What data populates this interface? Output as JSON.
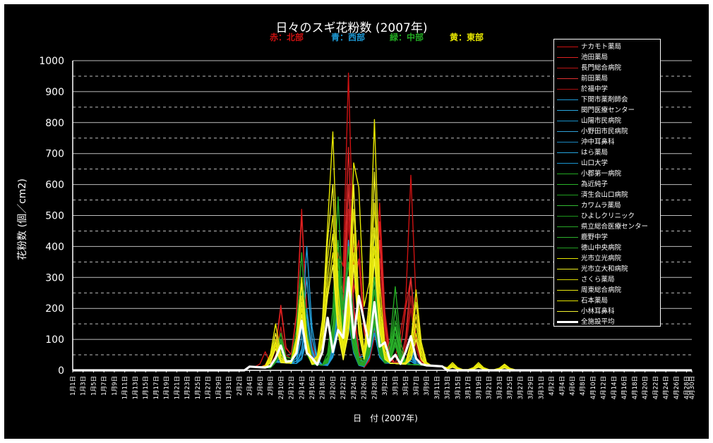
{
  "chart_data": {
    "type": "line",
    "title": "日々のスギ花粉数 (2007年)",
    "subtitle_groups": [
      {
        "label": "赤：北部",
        "color": "#cc1111"
      },
      {
        "label": "青：西部",
        "color": "#1e9bd7"
      },
      {
        "label": "緑：中部",
        "color": "#22aa22"
      },
      {
        "label": "黄：東部",
        "color": "#e8e800"
      }
    ],
    "xlabel": "日　付 (2007年)",
    "ylabel": "花粉数 (個／cm2)",
    "ylim": [
      0,
      1000
    ],
    "yticks": [
      0,
      100,
      200,
      300,
      400,
      500,
      600,
      700,
      800,
      900,
      1000
    ],
    "grid": "solid at every 100, dashed at every 50 offset",
    "legend_position": "top-right",
    "x_labels_every_other_day": [
      "1月1日",
      "1月3日",
      "1月5日",
      "1月7日",
      "1月9日",
      "1月11日",
      "1月13日",
      "1月15日",
      "1月17日",
      "1月19日",
      "1月21日",
      "1月23日",
      "1月25日",
      "1月27日",
      "1月29日",
      "1月31日",
      "2月2日",
      "2月4日",
      "2月6日",
      "2月8日",
      "2月10日",
      "2月12日",
      "2月14日",
      "2月16日",
      "2月18日",
      "2月20日",
      "2月22日",
      "2月24日",
      "2月26日",
      "2月28日",
      "3月2日",
      "3月3日",
      "3月5日",
      "3月7日",
      "3月9日",
      "3月11日",
      "3月13日",
      "3月15日",
      "3月17日",
      "3月19日",
      "3月21日",
      "3月23日",
      "3月25日",
      "3月27日",
      "3月29日",
      "3月31日",
      "4月2日",
      "4月4日",
      "4月6日",
      "4月8日",
      "4月10日",
      "4月12日",
      "4月14日",
      "4月16日",
      "4月18日",
      "4月20日",
      "4月22日",
      "4月24日",
      "4月26日",
      "4月28日",
      "4月30日"
    ],
    "series": [
      {
        "name": "ナカモト薬局",
        "color": "#cc1111",
        "region": "北部",
        "peaks": [
          [
            37,
            60
          ],
          [
            40,
            200
          ],
          [
            44,
            520
          ],
          [
            46,
            80
          ],
          [
            51,
            380
          ],
          [
            53,
            960
          ],
          [
            55,
            420
          ],
          [
            59,
            540
          ],
          [
            63,
            120
          ],
          [
            65,
            630
          ]
        ]
      },
      {
        "name": "池田薬局",
        "color": "#dd2222",
        "region": "北部",
        "peaks": [
          [
            38,
            50
          ],
          [
            40,
            210
          ],
          [
            44,
            500
          ],
          [
            51,
            300
          ],
          [
            53,
            720
          ],
          [
            55,
            360
          ],
          [
            59,
            480
          ],
          [
            64,
            200
          ],
          [
            65,
            300
          ]
        ]
      },
      {
        "name": "長門総合病院",
        "color": "#bb1515",
        "region": "北部",
        "peaks": [
          [
            40,
            140
          ],
          [
            44,
            380
          ],
          [
            51,
            260
          ],
          [
            53,
            520
          ],
          [
            59,
            360
          ],
          [
            65,
            240
          ]
        ]
      },
      {
        "name": "前田薬局",
        "color": "#e03030",
        "region": "北部",
        "peaks": [
          [
            40,
            100
          ],
          [
            44,
            300
          ],
          [
            51,
            300
          ],
          [
            53,
            600
          ],
          [
            59,
            420
          ],
          [
            65,
            300
          ]
        ]
      },
      {
        "name": "於福中学",
        "color": "#aa1010",
        "region": "北部",
        "peaks": [
          [
            40,
            80
          ],
          [
            44,
            260
          ],
          [
            51,
            220
          ],
          [
            53,
            480
          ],
          [
            59,
            300
          ],
          [
            65,
            200
          ]
        ]
      },
      {
        "name": "下関市薬剤師会",
        "color": "#1e9bd7",
        "region": "西部",
        "peaks": [
          [
            40,
            60
          ],
          [
            45,
            400
          ],
          [
            51,
            240
          ],
          [
            53,
            420
          ],
          [
            58,
            460
          ],
          [
            65,
            80
          ]
        ]
      },
      {
        "name": "関門医療センター",
        "color": "#2aa8e0",
        "region": "西部",
        "peaks": [
          [
            40,
            40
          ],
          [
            45,
            300
          ],
          [
            51,
            200
          ],
          [
            53,
            300
          ],
          [
            58,
            300
          ],
          [
            65,
            60
          ]
        ]
      },
      {
        "name": "山陽市民病院",
        "color": "#1890c8",
        "region": "西部",
        "peaks": [
          [
            40,
            50
          ],
          [
            45,
            200
          ],
          [
            51,
            180
          ],
          [
            53,
            260
          ],
          [
            58,
            220
          ],
          [
            65,
            50
          ]
        ]
      },
      {
        "name": "小野田市民病院",
        "color": "#2fa0d8",
        "region": "西部",
        "peaks": [
          [
            40,
            30
          ],
          [
            45,
            180
          ],
          [
            51,
            220
          ],
          [
            53,
            240
          ],
          [
            58,
            200
          ],
          [
            65,
            40
          ]
        ]
      },
      {
        "name": "沖中耳鼻科",
        "color": "#1c88c0",
        "region": "西部",
        "peaks": [
          [
            40,
            40
          ],
          [
            45,
            160
          ],
          [
            51,
            150
          ],
          [
            53,
            200
          ],
          [
            58,
            160
          ],
          [
            65,
            40
          ]
        ]
      },
      {
        "name": "はら薬局",
        "color": "#25a5dd",
        "region": "西部",
        "peaks": [
          [
            40,
            30
          ],
          [
            45,
            120
          ],
          [
            51,
            140
          ],
          [
            53,
            180
          ],
          [
            58,
            140
          ],
          [
            65,
            30
          ]
        ]
      },
      {
        "name": "山口大学",
        "color": "#1a95d0",
        "region": "西部",
        "peaks": [
          [
            40,
            20
          ],
          [
            45,
            100
          ],
          [
            51,
            120
          ],
          [
            53,
            160
          ],
          [
            58,
            120
          ],
          [
            65,
            30
          ]
        ]
      },
      {
        "name": "小郡第一病院",
        "color": "#22aa22",
        "region": "中部",
        "peaks": [
          [
            40,
            120
          ],
          [
            44,
            380
          ],
          [
            51,
            560
          ],
          [
            53,
            400
          ],
          [
            58,
            360
          ],
          [
            62,
            270
          ]
        ]
      },
      {
        "name": "為近純子",
        "color": "#2bb52b",
        "region": "中部",
        "peaks": [
          [
            40,
            100
          ],
          [
            44,
            300
          ],
          [
            51,
            420
          ],
          [
            53,
            350
          ],
          [
            58,
            300
          ],
          [
            62,
            200
          ]
        ]
      },
      {
        "name": "済生会山口病院",
        "color": "#1f9f1f",
        "region": "中部",
        "peaks": [
          [
            40,
            90
          ],
          [
            44,
            260
          ],
          [
            51,
            360
          ],
          [
            53,
            300
          ],
          [
            58,
            260
          ],
          [
            62,
            160
          ]
        ]
      },
      {
        "name": "カワムラ薬局",
        "color": "#33bb33",
        "region": "中部",
        "peaks": [
          [
            40,
            80
          ],
          [
            44,
            220
          ],
          [
            51,
            320
          ],
          [
            53,
            260
          ],
          [
            58,
            220
          ],
          [
            62,
            140
          ]
        ]
      },
      {
        "name": "ひよしクリニック",
        "color": "#1c961c",
        "region": "中部",
        "peaks": [
          [
            40,
            60
          ],
          [
            44,
            200
          ],
          [
            51,
            300
          ],
          [
            53,
            240
          ],
          [
            58,
            200
          ],
          [
            62,
            120
          ]
        ]
      },
      {
        "name": "県立総合医療センター",
        "color": "#28a828",
        "region": "中部",
        "peaks": [
          [
            40,
            70
          ],
          [
            44,
            180
          ],
          [
            51,
            280
          ],
          [
            53,
            220
          ],
          [
            58,
            180
          ],
          [
            62,
            100
          ]
        ]
      },
      {
        "name": "鹿野中学",
        "color": "#2db02d",
        "region": "中部",
        "peaks": [
          [
            40,
            50
          ],
          [
            44,
            160
          ],
          [
            51,
            260
          ],
          [
            53,
            200
          ],
          [
            58,
            160
          ],
          [
            62,
            90
          ]
        ]
      },
      {
        "name": "徳山中央病院",
        "color": "#239f23",
        "region": "中部",
        "peaks": [
          [
            40,
            60
          ],
          [
            44,
            150
          ],
          [
            51,
            240
          ],
          [
            53,
            180
          ],
          [
            58,
            150
          ],
          [
            62,
            80
          ]
        ]
      },
      {
        "name": "光市立光病院",
        "color": "#e8e800",
        "region": "東部",
        "peaks": [
          [
            39,
            150
          ],
          [
            44,
            300
          ],
          [
            49,
            470
          ],
          [
            50,
            770
          ],
          [
            54,
            670
          ],
          [
            55,
            590
          ],
          [
            58,
            810
          ],
          [
            66,
            260
          ],
          [
            73,
            25
          ],
          [
            78,
            25
          ],
          [
            83,
            20
          ]
        ]
      },
      {
        "name": "光市立大和病院",
        "color": "#f0f020",
        "region": "東部",
        "peaks": [
          [
            39,
            120
          ],
          [
            44,
            280
          ],
          [
            49,
            420
          ],
          [
            50,
            600
          ],
          [
            54,
            600
          ],
          [
            58,
            640
          ],
          [
            66,
            220
          ],
          [
            73,
            20
          ],
          [
            78,
            20
          ],
          [
            83,
            18
          ]
        ]
      },
      {
        "name": "さくら薬局",
        "color": "#dede00",
        "region": "東部",
        "peaks": [
          [
            39,
            100
          ],
          [
            44,
            240
          ],
          [
            49,
            360
          ],
          [
            50,
            500
          ],
          [
            54,
            520
          ],
          [
            58,
            540
          ],
          [
            66,
            180
          ],
          [
            73,
            18
          ],
          [
            78,
            18
          ],
          [
            83,
            15
          ]
        ]
      },
      {
        "name": "周東総合病院",
        "color": "#ecec10",
        "region": "東部",
        "peaks": [
          [
            39,
            90
          ],
          [
            44,
            220
          ],
          [
            49,
            300
          ],
          [
            50,
            440
          ],
          [
            54,
            440
          ],
          [
            58,
            460
          ],
          [
            66,
            150
          ],
          [
            73,
            15
          ],
          [
            78,
            15
          ],
          [
            83,
            12
          ]
        ]
      },
      {
        "name": "石本薬局",
        "color": "#e4e400",
        "region": "東部",
        "peaks": [
          [
            39,
            80
          ],
          [
            44,
            200
          ],
          [
            49,
            260
          ],
          [
            50,
            380
          ],
          [
            54,
            380
          ],
          [
            58,
            400
          ],
          [
            66,
            120
          ],
          [
            73,
            12
          ],
          [
            78,
            12
          ],
          [
            83,
            10
          ]
        ]
      },
      {
        "name": "小林耳鼻科",
        "color": "#f4f430",
        "region": "東部",
        "peaks": [
          [
            39,
            70
          ],
          [
            44,
            180
          ],
          [
            49,
            240
          ],
          [
            50,
            340
          ],
          [
            54,
            340
          ],
          [
            58,
            360
          ],
          [
            66,
            100
          ],
          [
            73,
            10
          ],
          [
            78,
            10
          ],
          [
            83,
            8
          ]
        ]
      },
      {
        "name": "全施設平均",
        "color": "#ffffff",
        "region": "平均",
        "peaks": [
          [
            39,
            40
          ],
          [
            40,
            80
          ],
          [
            42,
            30
          ],
          [
            44,
            160
          ],
          [
            46,
            40
          ],
          [
            49,
            170
          ],
          [
            51,
            130
          ],
          [
            53,
            300
          ],
          [
            55,
            240
          ],
          [
            56,
            160
          ],
          [
            58,
            220
          ],
          [
            60,
            90
          ],
          [
            62,
            50
          ],
          [
            64,
            60
          ],
          [
            65,
            110
          ],
          [
            67,
            20
          ]
        ]
      }
    ]
  }
}
